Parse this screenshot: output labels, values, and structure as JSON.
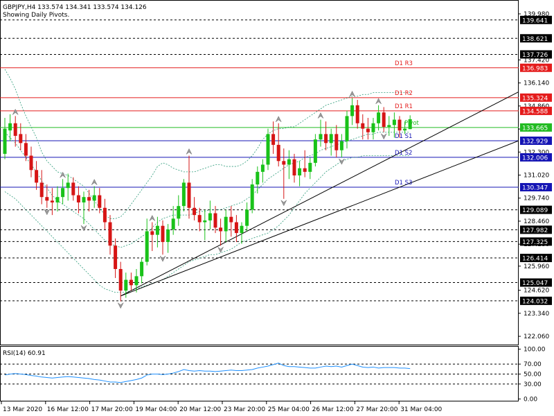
{
  "header": {
    "line1": "GBPJPY,H4  133.574 134.341 133.574 134.126",
    "line2": "Showing Daily Pivots."
  },
  "colors": {
    "background": "#ffffff",
    "bull": "#19c219",
    "bear": "#d61515",
    "pivot_red": "#e41b1b",
    "pivot_blue": "#1414b4",
    "pivot_green": "#22bb22",
    "envelope": "#2a9a78",
    "rsi_line": "#1e90ff",
    "grid": "#000000"
  },
  "chart_data": [
    {
      "type": "candlestick",
      "symbol": "GBPJPY",
      "timeframe": "H4",
      "ylim": [
        121.6,
        140.75
      ],
      "y_ticks": [
        139.98,
        137.42,
        136.14,
        134.86,
        133.58,
        132.3,
        131.02,
        129.74,
        128.46,
        127.18,
        125.96,
        124.62,
        123.34,
        122.06
      ],
      "x_labels": [
        "13 Mar 2020",
        "16 Mar 12:00",
        "17 Mar 20:00",
        "19 Mar 04:00",
        "20 Mar 12:00",
        "23 Mar 20:00",
        "25 Mar 04:00",
        "26 Mar 12:00",
        "27 Mar 20:00",
        "31 Mar 04:00"
      ],
      "price_levels": [
        {
          "value": 139.641,
          "style": "dash",
          "color": "black"
        },
        {
          "value": 138.621,
          "style": "dash",
          "color": "black"
        },
        {
          "value": 137.726,
          "style": "dash",
          "color": "black"
        },
        {
          "value": 136.983,
          "style": "solid",
          "color": "red",
          "label": "D1 R3"
        },
        {
          "value": 135.324,
          "style": "solid",
          "color": "red",
          "label": "D1 R2"
        },
        {
          "value": 134.588,
          "style": "solid",
          "color": "red",
          "label": "D1 R1"
        },
        {
          "value": 133.665,
          "style": "solid",
          "color": "green",
          "label": "Pivot"
        },
        {
          "value": 132.929,
          "style": "solid",
          "color": "blue",
          "label": "D1 S1"
        },
        {
          "value": 132.006,
          "style": "solid",
          "color": "blue",
          "label": "D1 S2"
        },
        {
          "value": 130.347,
          "style": "solid",
          "color": "blue",
          "label": "D1 S3"
        },
        {
          "value": 129.089,
          "style": "dash",
          "color": "black"
        },
        {
          "value": 127.982,
          "style": "dash",
          "color": "black"
        },
        {
          "value": 127.325,
          "style": "dash",
          "color": "black"
        },
        {
          "value": 126.414,
          "style": "dash",
          "color": "black"
        },
        {
          "value": 125.047,
          "style": "dash",
          "color": "black"
        },
        {
          "value": 124.032,
          "style": "dash",
          "color": "black"
        }
      ],
      "candles": [
        {
          "o": 132.2,
          "h": 134.2,
          "l": 131.9,
          "c": 133.6
        },
        {
          "o": 133.5,
          "h": 134.4,
          "l": 132.9,
          "c": 133.9
        },
        {
          "o": 133.9,
          "h": 134.3,
          "l": 132.6,
          "c": 133.2
        },
        {
          "o": 133.3,
          "h": 133.9,
          "l": 132.4,
          "c": 132.8
        },
        {
          "o": 132.8,
          "h": 133.3,
          "l": 131.8,
          "c": 132.1
        },
        {
          "o": 132.1,
          "h": 132.6,
          "l": 130.9,
          "c": 131.3
        },
        {
          "o": 131.3,
          "h": 131.8,
          "l": 130.2,
          "c": 130.6
        },
        {
          "o": 130.6,
          "h": 131.3,
          "l": 129.4,
          "c": 129.8
        },
        {
          "o": 129.8,
          "h": 130.5,
          "l": 129.2,
          "c": 129.6
        },
        {
          "o": 129.6,
          "h": 130.3,
          "l": 128.8,
          "c": 129.5
        },
        {
          "o": 129.5,
          "h": 130.4,
          "l": 129.0,
          "c": 129.8
        },
        {
          "o": 129.8,
          "h": 130.8,
          "l": 129.4,
          "c": 130.3
        },
        {
          "o": 130.3,
          "h": 131.1,
          "l": 129.6,
          "c": 130.6
        },
        {
          "o": 130.6,
          "h": 130.9,
          "l": 129.6,
          "c": 129.9
        },
        {
          "o": 129.9,
          "h": 130.4,
          "l": 128.9,
          "c": 129.5
        },
        {
          "o": 129.5,
          "h": 130.1,
          "l": 128.3,
          "c": 129.8
        },
        {
          "o": 129.8,
          "h": 130.2,
          "l": 129.0,
          "c": 129.6
        },
        {
          "o": 129.6,
          "h": 130.4,
          "l": 129.2,
          "c": 129.9
        },
        {
          "o": 129.9,
          "h": 130.3,
          "l": 128.9,
          "c": 129.2
        },
        {
          "o": 129.2,
          "h": 129.7,
          "l": 128.0,
          "c": 128.4
        },
        {
          "o": 128.4,
          "h": 128.8,
          "l": 126.6,
          "c": 127.1
        },
        {
          "o": 127.1,
          "h": 127.5,
          "l": 125.3,
          "c": 125.8
        },
        {
          "o": 125.8,
          "h": 126.2,
          "l": 124.0,
          "c": 124.6
        },
        {
          "o": 124.6,
          "h": 125.6,
          "l": 124.2,
          "c": 125.2
        },
        {
          "o": 125.2,
          "h": 125.6,
          "l": 124.6,
          "c": 124.9
        },
        {
          "o": 124.9,
          "h": 125.8,
          "l": 124.5,
          "c": 125.4
        },
        {
          "o": 125.4,
          "h": 126.4,
          "l": 125.0,
          "c": 126.2
        },
        {
          "o": 126.2,
          "h": 128.6,
          "l": 126.0,
          "c": 127.9
        },
        {
          "o": 127.9,
          "h": 128.4,
          "l": 126.8,
          "c": 127.7
        },
        {
          "o": 127.7,
          "h": 128.7,
          "l": 127.0,
          "c": 128.2
        },
        {
          "o": 128.2,
          "h": 128.5,
          "l": 126.6,
          "c": 127.3
        },
        {
          "o": 127.3,
          "h": 128.3,
          "l": 126.7,
          "c": 128.0
        },
        {
          "o": 128.0,
          "h": 129.3,
          "l": 127.7,
          "c": 128.6
        },
        {
          "o": 128.6,
          "h": 129.9,
          "l": 128.2,
          "c": 129.3
        },
        {
          "o": 129.3,
          "h": 130.8,
          "l": 129.0,
          "c": 130.6
        },
        {
          "o": 130.6,
          "h": 132.1,
          "l": 128.6,
          "c": 129.2
        },
        {
          "o": 129.2,
          "h": 129.8,
          "l": 128.5,
          "c": 128.8
        },
        {
          "o": 128.8,
          "h": 129.2,
          "l": 127.9,
          "c": 128.4
        },
        {
          "o": 128.4,
          "h": 129.1,
          "l": 127.4,
          "c": 128.5
        },
        {
          "o": 128.5,
          "h": 129.6,
          "l": 128.0,
          "c": 128.9
        },
        {
          "o": 128.9,
          "h": 129.3,
          "l": 127.8,
          "c": 128.1
        },
        {
          "o": 128.1,
          "h": 128.6,
          "l": 127.1,
          "c": 127.9
        },
        {
          "o": 127.9,
          "h": 129.1,
          "l": 127.3,
          "c": 128.7
        },
        {
          "o": 128.7,
          "h": 129.3,
          "l": 127.6,
          "c": 128.4
        },
        {
          "o": 128.4,
          "h": 128.8,
          "l": 127.3,
          "c": 127.8
        },
        {
          "o": 127.8,
          "h": 128.4,
          "l": 127.2,
          "c": 128.2
        },
        {
          "o": 128.2,
          "h": 129.5,
          "l": 127.9,
          "c": 129.1
        },
        {
          "o": 129.1,
          "h": 130.8,
          "l": 128.9,
          "c": 130.5
        },
        {
          "o": 130.5,
          "h": 131.5,
          "l": 130.0,
          "c": 131.2
        },
        {
          "o": 131.2,
          "h": 131.9,
          "l": 130.6,
          "c": 131.6
        },
        {
          "o": 131.6,
          "h": 133.6,
          "l": 131.3,
          "c": 133.3
        },
        {
          "o": 133.3,
          "h": 134.0,
          "l": 132.2,
          "c": 132.7
        },
        {
          "o": 132.7,
          "h": 133.9,
          "l": 131.5,
          "c": 131.8
        },
        {
          "o": 131.8,
          "h": 132.5,
          "l": 129.7,
          "c": 131.6
        },
        {
          "o": 131.6,
          "h": 132.4,
          "l": 130.8,
          "c": 131.9
        },
        {
          "o": 131.9,
          "h": 132.2,
          "l": 130.6,
          "c": 131.0
        },
        {
          "o": 131.0,
          "h": 131.8,
          "l": 130.4,
          "c": 131.4
        },
        {
          "o": 131.4,
          "h": 132.4,
          "l": 130.9,
          "c": 131.2
        },
        {
          "o": 131.2,
          "h": 132.0,
          "l": 130.8,
          "c": 131.7
        },
        {
          "o": 131.7,
          "h": 133.3,
          "l": 131.5,
          "c": 133.0
        },
        {
          "o": 133.0,
          "h": 134.1,
          "l": 132.6,
          "c": 133.3
        },
        {
          "o": 133.3,
          "h": 134.0,
          "l": 132.4,
          "c": 132.8
        },
        {
          "o": 132.8,
          "h": 133.6,
          "l": 132.1,
          "c": 133.3
        },
        {
          "o": 133.3,
          "h": 133.8,
          "l": 132.0,
          "c": 132.4
        },
        {
          "o": 132.4,
          "h": 133.3,
          "l": 132.0,
          "c": 132.9
        },
        {
          "o": 132.9,
          "h": 134.6,
          "l": 132.5,
          "c": 134.3
        },
        {
          "o": 134.3,
          "h": 135.3,
          "l": 133.8,
          "c": 134.9
        },
        {
          "o": 134.9,
          "h": 135.2,
          "l": 133.6,
          "c": 133.9
        },
        {
          "o": 133.9,
          "h": 134.4,
          "l": 133.0,
          "c": 133.6
        },
        {
          "o": 133.6,
          "h": 134.2,
          "l": 133.0,
          "c": 133.4
        },
        {
          "o": 133.4,
          "h": 134.2,
          "l": 133.0,
          "c": 133.9
        },
        {
          "o": 133.9,
          "h": 134.9,
          "l": 133.5,
          "c": 134.5
        },
        {
          "o": 134.5,
          "h": 134.8,
          "l": 133.4,
          "c": 133.7
        },
        {
          "o": 133.7,
          "h": 134.3,
          "l": 133.2,
          "c": 133.8
        },
        {
          "o": 133.8,
          "h": 134.5,
          "l": 133.1,
          "c": 134.1
        },
        {
          "o": 134.1,
          "h": 134.3,
          "l": 133.1,
          "c": 133.5
        },
        {
          "o": 133.5,
          "h": 134.0,
          "l": 133.3,
          "c": 133.6
        },
        {
          "o": 133.574,
          "h": 134.341,
          "l": 133.574,
          "c": 134.126
        }
      ],
      "envelope_upper": [
        136.9,
        136.4,
        135.8,
        135.0,
        134.3,
        133.7,
        133.1,
        132.3,
        131.8,
        131.5,
        131.2,
        131.1,
        131.0,
        130.8,
        130.6,
        130.4,
        130.0,
        129.6,
        129.2,
        128.8,
        128.6,
        128.6,
        128.7,
        129.0,
        129.4,
        129.8,
        130.2,
        130.6,
        131.0,
        131.5,
        131.7,
        131.6,
        131.4,
        131.3,
        131.2,
        131.2,
        131.2,
        131.3,
        131.4,
        131.5,
        131.6,
        131.6,
        131.5,
        131.5,
        131.5,
        131.6,
        131.8,
        132.1,
        132.5,
        133.0,
        133.3,
        133.5,
        133.6,
        133.6,
        133.7,
        133.7,
        133.9,
        134.1,
        134.3,
        134.5,
        134.7,
        134.9,
        135.0,
        135.1,
        135.2,
        135.3,
        135.4,
        135.4,
        135.5,
        135.5,
        135.6,
        135.6,
        135.6,
        135.6,
        135.6,
        135.6,
        135.6,
        135.6
      ],
      "envelope_middle": [
        133.4,
        133.1,
        132.8,
        132.4,
        132.0,
        131.6,
        131.2,
        130.7,
        130.3,
        129.9,
        129.6,
        129.4,
        129.2,
        129.0,
        128.8,
        128.6,
        128.3,
        128.0,
        127.7,
        127.4,
        127.2,
        127.1,
        127.0,
        127.1,
        127.2,
        127.4,
        127.6,
        127.8,
        128.1,
        128.4,
        128.6,
        128.7,
        128.8,
        128.8,
        128.8,
        128.8,
        128.9,
        129.0,
        129.0,
        129.1,
        129.1,
        129.1,
        129.2,
        129.3,
        129.4,
        129.5,
        129.7,
        129.9,
        130.2,
        130.5,
        130.8,
        131.0,
        131.2,
        131.4,
        131.6,
        131.7,
        131.8,
        132.0,
        132.1,
        132.2,
        132.4,
        132.5,
        132.6,
        132.7,
        132.8,
        132.9,
        133.0,
        133.1,
        133.2,
        133.3,
        133.3,
        133.4,
        133.4,
        133.4,
        133.4,
        133.4,
        133.4,
        133.4
      ],
      "envelope_lower": [
        130.1,
        129.9,
        129.7,
        129.4,
        129.1,
        128.8,
        128.5,
        128.2,
        127.9,
        127.6,
        127.3,
        127.0,
        126.7,
        126.4,
        126.1,
        125.8,
        125.5,
        125.2,
        124.9,
        124.7,
        124.6,
        124.5,
        124.5,
        124.5,
        124.6,
        124.7,
        124.8,
        124.9,
        125.0,
        125.1,
        125.2,
        125.4,
        125.6,
        125.8,
        126.0,
        126.2,
        126.3,
        126.4,
        126.5,
        126.6,
        126.6,
        126.7,
        126.8,
        126.9,
        127.1,
        127.3,
        127.4,
        127.5,
        127.6,
        127.7,
        127.8,
        128.0,
        128.2,
        128.5,
        128.8,
        129.2,
        129.6,
        130.0,
        130.3,
        130.6,
        130.9,
        131.2,
        131.4,
        131.6,
        131.8,
        131.9,
        132.0,
        132.0,
        132.1,
        132.1,
        132.1,
        132.1,
        132.1,
        132.1,
        132.1,
        132.1,
        132.1,
        132.1
      ],
      "channel_lines": [
        {
          "points": [
            [
              22,
              124.3
            ],
            [
              100,
              136.0
            ]
          ]
        },
        {
          "points": [
            [
              22,
              124.3
            ],
            [
              100,
              133.2
            ]
          ]
        }
      ],
      "fractals": [
        {
          "i": 2,
          "dir": "up"
        },
        {
          "i": 8,
          "dir": "down"
        },
        {
          "i": 11,
          "dir": "up"
        },
        {
          "i": 15,
          "dir": "down"
        },
        {
          "i": 17,
          "dir": "up"
        },
        {
          "i": 22,
          "dir": "down"
        },
        {
          "i": 28,
          "dir": "up"
        },
        {
          "i": 30,
          "dir": "down"
        },
        {
          "i": 35,
          "dir": "up"
        },
        {
          "i": 41,
          "dir": "down"
        },
        {
          "i": 52,
          "dir": "up"
        },
        {
          "i": 53,
          "dir": "down"
        },
        {
          "i": 60,
          "dir": "up"
        },
        {
          "i": 64,
          "dir": "down"
        },
        {
          "i": 66,
          "dir": "up"
        },
        {
          "i": 71,
          "dir": "up"
        },
        {
          "i": 72,
          "dir": "down"
        }
      ]
    },
    {
      "type": "line",
      "title": "RSI(14) 60.91",
      "ylim": [
        -5,
        105
      ],
      "y_ticks": [
        100.0,
        70.0,
        50.0,
        30.0,
        0.0
      ],
      "levels": [
        70,
        50,
        30
      ],
      "values": [
        48,
        50,
        51,
        50,
        49,
        47,
        46,
        44,
        43,
        42,
        43,
        44,
        45,
        44,
        43,
        42,
        41,
        39,
        38,
        36,
        34,
        34,
        33,
        35,
        37,
        39,
        42,
        48,
        50,
        50,
        49,
        50,
        52,
        55,
        59,
        57,
        56,
        57,
        56,
        56,
        55,
        56,
        57,
        58,
        57,
        57,
        58,
        59,
        62,
        64,
        66,
        69,
        72,
        67,
        65,
        65,
        64,
        63,
        62,
        62,
        64,
        66,
        65,
        66,
        64,
        67,
        70,
        67,
        64,
        63,
        64,
        62,
        63,
        63,
        63,
        62,
        62,
        61
      ]
    }
  ]
}
